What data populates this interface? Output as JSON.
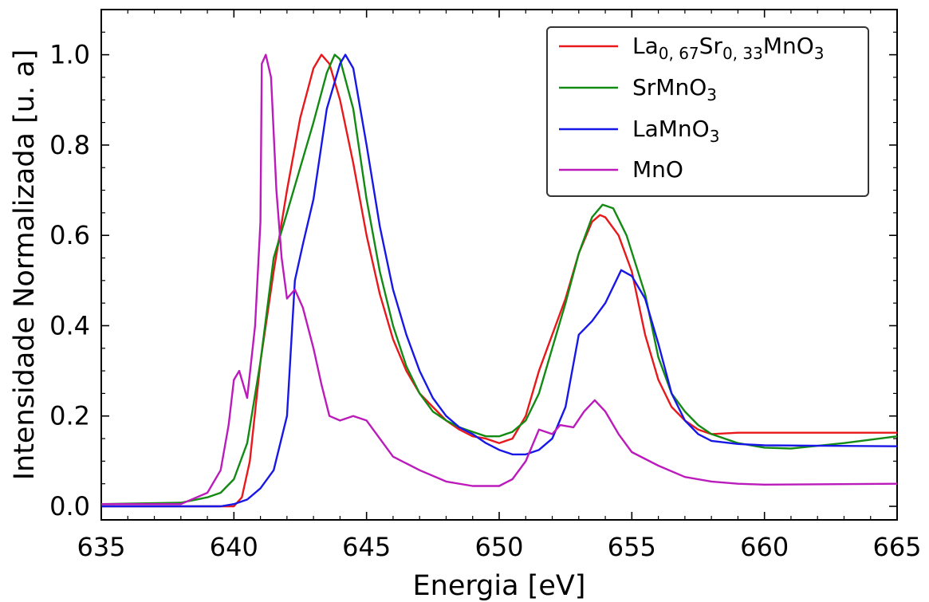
{
  "chart_data": {
    "type": "line",
    "xlabel": "Energia [eV]",
    "ylabel": "Intensidade Normalizada [u. a]",
    "xlim": [
      635,
      665
    ],
    "ylim": [
      -0.03,
      1.1
    ],
    "xticks": [
      635,
      640,
      645,
      650,
      655,
      660,
      665
    ],
    "yticks": [
      0.0,
      0.2,
      0.4,
      0.6,
      0.8,
      1.0
    ],
    "xtick_labels": [
      "635",
      "640",
      "645",
      "650",
      "655",
      "660",
      "665"
    ],
    "ytick_labels": [
      "0.0",
      "0.2",
      "0.4",
      "0.6",
      "0.8",
      "1.0"
    ],
    "grid": false,
    "legend_position": "top-right",
    "series": [
      {
        "name": "La0,67Sr0,33MnO3",
        "legend": {
          "base1": "La",
          "sub1": "0, 67",
          "base2": "Sr",
          "sub2": "0, 33",
          "base3": "MnO",
          "sub3": "3"
        },
        "color": "#e8181b",
        "points": [
          [
            635,
            0.0
          ],
          [
            639,
            0.0
          ],
          [
            640,
            0.0
          ],
          [
            640.3,
            0.02
          ],
          [
            640.6,
            0.1
          ],
          [
            641,
            0.32
          ],
          [
            641.5,
            0.52
          ],
          [
            642,
            0.7
          ],
          [
            642.5,
            0.86
          ],
          [
            643,
            0.97
          ],
          [
            643.3,
            1.0
          ],
          [
            643.6,
            0.98
          ],
          [
            644,
            0.9
          ],
          [
            644.5,
            0.76
          ],
          [
            645,
            0.6
          ],
          [
            645.5,
            0.47
          ],
          [
            646,
            0.37
          ],
          [
            646.5,
            0.3
          ],
          [
            647,
            0.25
          ],
          [
            647.5,
            0.22
          ],
          [
            648,
            0.19
          ],
          [
            648.5,
            0.17
          ],
          [
            649,
            0.155
          ],
          [
            649.5,
            0.15
          ],
          [
            650,
            0.14
          ],
          [
            650.5,
            0.15
          ],
          [
            651,
            0.2
          ],
          [
            651.5,
            0.3
          ],
          [
            652,
            0.38
          ],
          [
            652.5,
            0.46
          ],
          [
            653,
            0.56
          ],
          [
            653.5,
            0.63
          ],
          [
            653.8,
            0.645
          ],
          [
            654,
            0.64
          ],
          [
            654.5,
            0.6
          ],
          [
            655,
            0.52
          ],
          [
            655.5,
            0.38
          ],
          [
            656,
            0.28
          ],
          [
            656.5,
            0.22
          ],
          [
            657,
            0.19
          ],
          [
            657.5,
            0.17
          ],
          [
            658,
            0.16
          ],
          [
            659,
            0.163
          ],
          [
            665,
            0.163
          ]
        ]
      },
      {
        "name": "SrMnO3",
        "legend": {
          "base1": "SrMnO",
          "sub1": "3"
        },
        "color": "#138a13",
        "points": [
          [
            635,
            0.005
          ],
          [
            638,
            0.008
          ],
          [
            639,
            0.02
          ],
          [
            639.5,
            0.03
          ],
          [
            640,
            0.06
          ],
          [
            640.5,
            0.14
          ],
          [
            641,
            0.32
          ],
          [
            641.5,
            0.55
          ],
          [
            642,
            0.65
          ],
          [
            642.5,
            0.75
          ],
          [
            643,
            0.85
          ],
          [
            643.5,
            0.96
          ],
          [
            643.8,
            1.0
          ],
          [
            644,
            0.99
          ],
          [
            644.5,
            0.88
          ],
          [
            645,
            0.68
          ],
          [
            645.5,
            0.52
          ],
          [
            646,
            0.4
          ],
          [
            646.5,
            0.31
          ],
          [
            647,
            0.25
          ],
          [
            647.5,
            0.21
          ],
          [
            648,
            0.19
          ],
          [
            648.5,
            0.175
          ],
          [
            649,
            0.165
          ],
          [
            649.5,
            0.155
          ],
          [
            650,
            0.155
          ],
          [
            650.5,
            0.165
          ],
          [
            651,
            0.19
          ],
          [
            651.5,
            0.25
          ],
          [
            652,
            0.35
          ],
          [
            652.5,
            0.45
          ],
          [
            653,
            0.56
          ],
          [
            653.5,
            0.64
          ],
          [
            653.9,
            0.668
          ],
          [
            654.3,
            0.66
          ],
          [
            654.8,
            0.6
          ],
          [
            655.5,
            0.47
          ],
          [
            656,
            0.33
          ],
          [
            656.5,
            0.25
          ],
          [
            657,
            0.21
          ],
          [
            657.5,
            0.18
          ],
          [
            658,
            0.16
          ],
          [
            659,
            0.14
          ],
          [
            660,
            0.13
          ],
          [
            661,
            0.128
          ],
          [
            663,
            0.14
          ],
          [
            665,
            0.155
          ]
        ]
      },
      {
        "name": "LaMnO3",
        "legend": {
          "base1": "LaMnO",
          "sub1": "3"
        },
        "color": "#1717e6",
        "points": [
          [
            635,
            0.0
          ],
          [
            639.5,
            0.0
          ],
          [
            640,
            0.005
          ],
          [
            640.5,
            0.015
          ],
          [
            641,
            0.04
          ],
          [
            641.5,
            0.08
          ],
          [
            642,
            0.2
          ],
          [
            642.3,
            0.5
          ],
          [
            642.6,
            0.58
          ],
          [
            643,
            0.68
          ],
          [
            643.5,
            0.88
          ],
          [
            644,
            0.98
          ],
          [
            644.2,
            1.0
          ],
          [
            644.5,
            0.97
          ],
          [
            645,
            0.8
          ],
          [
            645.5,
            0.62
          ],
          [
            646,
            0.48
          ],
          [
            646.5,
            0.38
          ],
          [
            647,
            0.3
          ],
          [
            647.5,
            0.24
          ],
          [
            648,
            0.2
          ],
          [
            648.5,
            0.175
          ],
          [
            649,
            0.16
          ],
          [
            649.5,
            0.14
          ],
          [
            650,
            0.125
          ],
          [
            650.5,
            0.115
          ],
          [
            651,
            0.115
          ],
          [
            651.5,
            0.125
          ],
          [
            652,
            0.15
          ],
          [
            652.5,
            0.22
          ],
          [
            653,
            0.38
          ],
          [
            653.5,
            0.41
          ],
          [
            654,
            0.45
          ],
          [
            654.6,
            0.523
          ],
          [
            655,
            0.51
          ],
          [
            655.5,
            0.46
          ],
          [
            656,
            0.36
          ],
          [
            656.5,
            0.25
          ],
          [
            657,
            0.19
          ],
          [
            657.5,
            0.16
          ],
          [
            658,
            0.145
          ],
          [
            659,
            0.138
          ],
          [
            660,
            0.135
          ],
          [
            665,
            0.133
          ]
        ]
      },
      {
        "name": "MnO",
        "legend": {
          "base1": "MnO",
          "sub1": ""
        },
        "color": "#bb1bbb",
        "points": [
          [
            635,
            0.005
          ],
          [
            638,
            0.005
          ],
          [
            639,
            0.03
          ],
          [
            639.5,
            0.08
          ],
          [
            639.8,
            0.18
          ],
          [
            640,
            0.28
          ],
          [
            640.2,
            0.3
          ],
          [
            640.5,
            0.24
          ],
          [
            640.8,
            0.4
          ],
          [
            641,
            0.63
          ],
          [
            641.05,
            0.98
          ],
          [
            641.2,
            1.0
          ],
          [
            641.4,
            0.95
          ],
          [
            641.6,
            0.7
          ],
          [
            641.8,
            0.55
          ],
          [
            642,
            0.46
          ],
          [
            642.3,
            0.48
          ],
          [
            642.6,
            0.44
          ],
          [
            643,
            0.35
          ],
          [
            643.3,
            0.27
          ],
          [
            643.6,
            0.2
          ],
          [
            644,
            0.19
          ],
          [
            644.5,
            0.2
          ],
          [
            645,
            0.19
          ],
          [
            645.5,
            0.15
          ],
          [
            646,
            0.11
          ],
          [
            647,
            0.08
          ],
          [
            648,
            0.055
          ],
          [
            649,
            0.045
          ],
          [
            650,
            0.045
          ],
          [
            650.5,
            0.06
          ],
          [
            651,
            0.1
          ],
          [
            651.5,
            0.17
          ],
          [
            652,
            0.16
          ],
          [
            652.3,
            0.18
          ],
          [
            652.8,
            0.175
          ],
          [
            653.2,
            0.21
          ],
          [
            653.6,
            0.235
          ],
          [
            654,
            0.21
          ],
          [
            654.5,
            0.16
          ],
          [
            655,
            0.12
          ],
          [
            656,
            0.09
          ],
          [
            657,
            0.065
          ],
          [
            658,
            0.055
          ],
          [
            659,
            0.05
          ],
          [
            660,
            0.048
          ],
          [
            665,
            0.05
          ]
        ]
      }
    ]
  }
}
